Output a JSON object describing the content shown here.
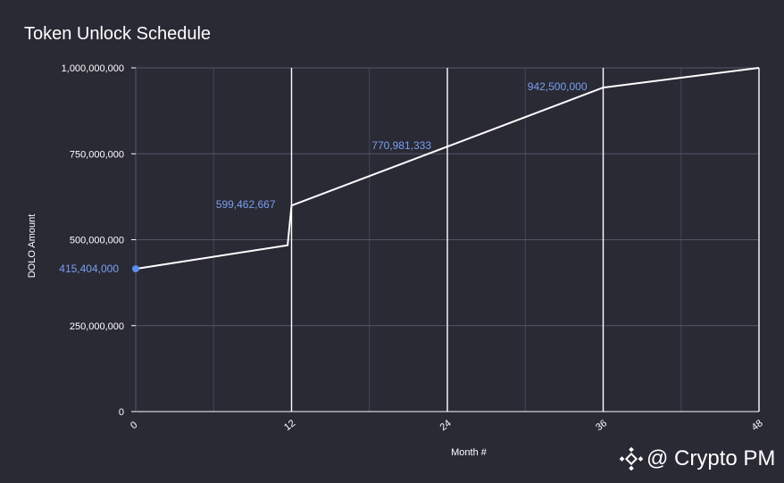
{
  "chart_data": {
    "type": "line",
    "title": "Token Unlock Schedule",
    "xlabel": "Month #",
    "ylabel": "DOLO Amount",
    "xlim": [
      0,
      48
    ],
    "ylim": [
      0,
      1000000000
    ],
    "x_ticks": [
      0,
      12,
      24,
      36,
      48
    ],
    "y_ticks": [
      0,
      250000000,
      500000000,
      750000000,
      1000000000
    ],
    "y_tick_labels": [
      "0",
      "250,000,000",
      "500,000,000",
      "750,000,000",
      "1,000,000,000"
    ],
    "grid": true,
    "series": [
      {
        "x": [
          0,
          11.7,
          12,
          24,
          36,
          48
        ],
        "y": [
          415404000,
          484000000,
          599462667,
          770981333,
          942500000,
          1000000000
        ],
        "color": "#ffffff"
      }
    ],
    "annotations": [
      {
        "x": 0,
        "y": 415404000,
        "label": "415,404,000"
      },
      {
        "x": 12,
        "y": 599462667,
        "label": "599,462,667"
      },
      {
        "x": 24,
        "y": 770981333,
        "label": "770,981,333"
      },
      {
        "x": 36,
        "y": 942500000,
        "label": "942,500,000"
      }
    ],
    "marker_color": "#5b8def",
    "label_color": "#7a9ff0"
  },
  "watermark": {
    "text": "@ Crypto PM",
    "icon": "binance-logo-icon"
  }
}
